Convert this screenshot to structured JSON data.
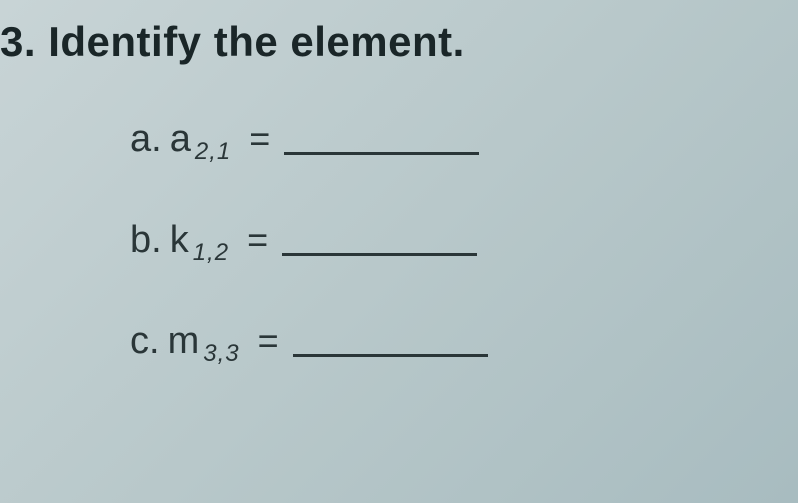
{
  "question": {
    "number": "3.",
    "prompt": "Identify the element."
  },
  "items": [
    {
      "label": "a.",
      "variable": "a",
      "subscript": "2,1",
      "equals": "=",
      "answer": ""
    },
    {
      "label": "b.",
      "variable": "k",
      "subscript": "1,2",
      "equals": "=",
      "answer": ""
    },
    {
      "label": "c.",
      "variable": "m",
      "subscript": "3,3",
      "equals": "=",
      "answer": ""
    }
  ],
  "styling": {
    "background_gradient_start": "#c8d4d6",
    "background_gradient_end": "#a8bcc0",
    "text_color": "#1a2628",
    "title_fontsize": 42,
    "item_fontsize": 38,
    "subscript_fontsize": 24,
    "blank_width": 195,
    "blank_border_color": "#2a3638"
  }
}
